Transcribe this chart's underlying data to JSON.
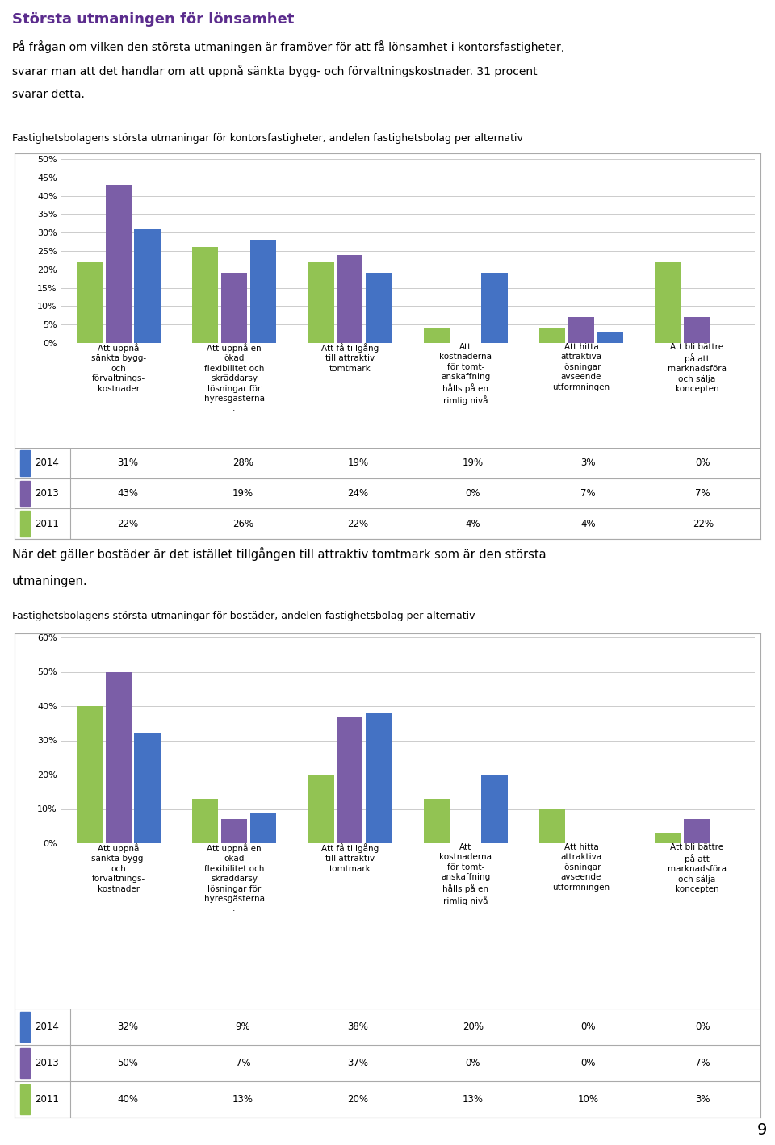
{
  "title": "Största utmaningen för lönsamhet",
  "title_color": "#5B2C8D",
  "intro_line1": "På frågan om vilken den största utmaningen är framöver för att få lönsamhet i kontorsfastigheter,",
  "intro_line2": "svarar man att det handlar om att uppnå sänkta bygg- och förvaltningskostnader. 31 procent",
  "intro_line3": "svarar detta.",
  "chart1_subtitle": "Fastighetsbolagens största utmaningar för kontorsfastigheter, andelen fastighetsbolag per alternativ",
  "chart2_subtitle": "Fastighetsbolagens största utmaningar för bostäder, andelen fastighetsbolag per alternativ",
  "mid_text1": "När det gäller bostäder är det istället tillgången till attraktiv tomtmark som är den största",
  "mid_text2": "utmaningen.",
  "page_number": "9",
  "categories": [
    "Att uppnå\nsänkta bygg-\noch\nförvaltnings-\nkostnader",
    "Att uppnå en\nökad\nflexibilitet och\nskräddarsy\nlösningar för\nhyresgästerna\n.",
    "Att få tillgång\ntill attraktiv\ntomtmark",
    "Att\nkostnaderna\nför tomt-\nanskaffning\nhålls på en\nrimlig nivå",
    "Att hitta\nattraktiva\nlösningar\navseende\nutformningen",
    "Att bli bättre\npå att\nmarknadsföra\noch sälja\nkoncepten"
  ],
  "chart1": {
    "ylim": [
      0,
      0.5
    ],
    "yticks": [
      0.0,
      0.05,
      0.1,
      0.15,
      0.2,
      0.25,
      0.3,
      0.35,
      0.4,
      0.45,
      0.5
    ],
    "ytick_labels": [
      "0%",
      "5%",
      "10%",
      "15%",
      "20%",
      "25%",
      "30%",
      "35%",
      "40%",
      "45%",
      "50%"
    ],
    "series": {
      "2011": [
        0.22,
        0.26,
        0.22,
        0.04,
        0.04,
        0.22
      ],
      "2013": [
        0.43,
        0.19,
        0.24,
        0.0,
        0.07,
        0.07
      ],
      "2014": [
        0.31,
        0.28,
        0.19,
        0.19,
        0.03,
        0.0
      ]
    },
    "table_data": {
      "2011": [
        "22%",
        "26%",
        "22%",
        "4%",
        "4%",
        "22%"
      ],
      "2013": [
        "43%",
        "19%",
        "24%",
        "0%",
        "7%",
        "7%"
      ],
      "2014": [
        "31%",
        "28%",
        "19%",
        "19%",
        "3%",
        "0%"
      ]
    }
  },
  "chart2": {
    "ylim": [
      0,
      0.6
    ],
    "yticks": [
      0.0,
      0.1,
      0.2,
      0.3,
      0.4,
      0.5,
      0.6
    ],
    "ytick_labels": [
      "0%",
      "10%",
      "20%",
      "30%",
      "40%",
      "50%",
      "60%"
    ],
    "series": {
      "2011": [
        0.4,
        0.13,
        0.2,
        0.13,
        0.1,
        0.03
      ],
      "2013": [
        0.5,
        0.07,
        0.37,
        0.0,
        0.0,
        0.07
      ],
      "2014": [
        0.32,
        0.09,
        0.38,
        0.2,
        0.0,
        0.0
      ]
    },
    "table_data": {
      "2011": [
        "40%",
        "13%",
        "20%",
        "13%",
        "10%",
        "3%"
      ],
      "2013": [
        "50%",
        "7%",
        "37%",
        "0%",
        "0%",
        "7%"
      ],
      "2014": [
        "32%",
        "9%",
        "38%",
        "20%",
        "0%",
        "0%"
      ]
    }
  },
  "colors": {
    "2011": "#92C353",
    "2013": "#7B5EA7",
    "2014": "#4472C4"
  },
  "bar_width": 0.25,
  "years": [
    "2011",
    "2013",
    "2014"
  ],
  "background_color": "#FFFFFF",
  "grid_color": "#CCCCCC",
  "text_color": "#000000",
  "border_color": "#AAAAAA"
}
